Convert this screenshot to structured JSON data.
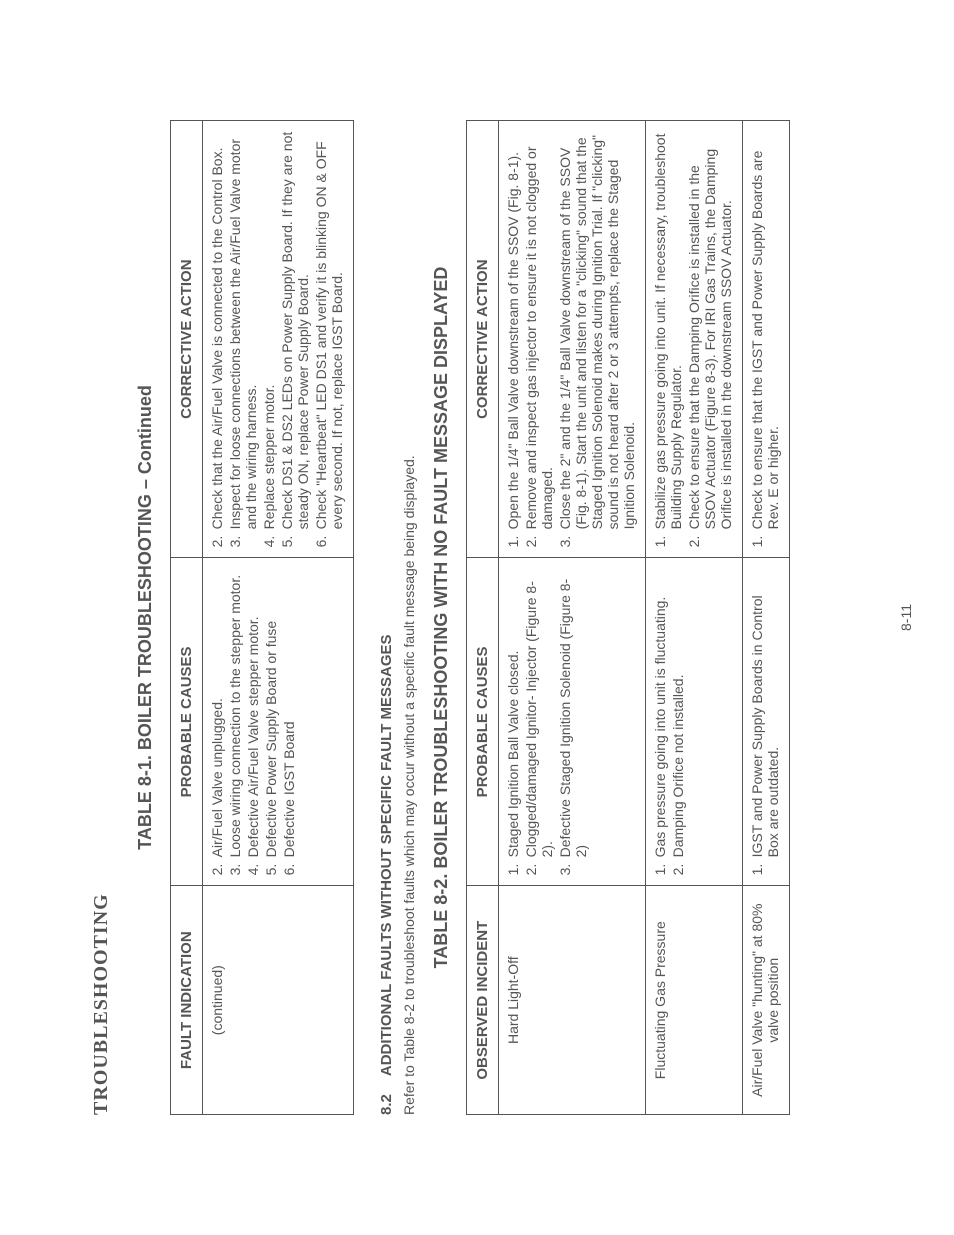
{
  "header": "TROUBLESHOOTING",
  "table1": {
    "title": "TABLE 8-1.   BOILER TROUBLESHOOTING – Continued",
    "col_a": "FAULT INDICATION",
    "col_b": "PROBABLE CAUSES",
    "col_c": "CORRECTIVE ACTION",
    "row": {
      "fault": "(continued)",
      "causes": [
        {
          "n": "2.",
          "t": "Air/Fuel Valve unplugged."
        },
        {
          "n": "3.",
          "t": "Loose wiring connection to the stepper motor."
        },
        {
          "n": "4.",
          "t": "Defective Air/Fuel Valve stepper motor."
        },
        {
          "n": "5.",
          "t": "Defective Power Supply Board or fuse"
        },
        {
          "n": "6.",
          "t": "Defective IGST Board"
        }
      ],
      "actions": [
        {
          "n": "2.",
          "t": "Check that the Air/Fuel Valve is connected to the Control Box."
        },
        {
          "n": "3.",
          "t": "Inspect for loose connections between the Air/Fuel Valve motor and the wiring harness."
        },
        {
          "n": "4.",
          "t": "Replace stepper motor."
        },
        {
          "n": "5.",
          "t": "Check DS1 & DS2 LEDs on Power Supply Board. If they are not steady ON, replace Power Supply Board."
        },
        {
          "n": "6.",
          "t": "Check \"Heartbeat\" LED DS1 and verify it is blinking ON & OFF every second. If not, replace IGST Board."
        }
      ]
    }
  },
  "subsection": {
    "num": "8.2",
    "title": "ADDITIONAL FAULTS WITHOUT SPECIFIC FAULT MESSAGES",
    "body": "Refer to Table 8-2 to troubleshoot faults which may occur without a specific fault message being displayed."
  },
  "table2": {
    "title": "TABLE 8-2.   BOILER TROUBLESHOOTING WITH NO FAULT MESSAGE DISPLAYED",
    "col_a": "OBSERVED INCIDENT",
    "col_b": "PROBABLE CAUSES",
    "col_c": "CORRECTIVE ACTION",
    "rows": [
      {
        "incident": "Hard Light-Off",
        "causes": [
          {
            "n": "1.",
            "t": "Staged Ignition Ball Valve closed."
          },
          {
            "n": "2.",
            "t": "Clogged/damaged Ignitor- Injector (Figure 8-2)."
          },
          {
            "n": "3.",
            "t": "Defective Staged Ignition Solenoid (Figure 8-2)"
          }
        ],
        "actions": [
          {
            "n": "1.",
            "t": "Open the 1/4\" Ball Valve downstream of the SSOV (Fig. 8-1)."
          },
          {
            "n": "2.",
            "t": "Remove and inspect gas injector to ensure it is not clogged or damaged."
          },
          {
            "n": "3.",
            "t": "Close the 2\" and the 1/4\" Ball Valve downstream of the SSOV (Fig. 8-1). Start the unit and listen for a \"clicking\" sound that the Staged Ignition Solenoid makes during Ignition Trial. If \"clicking\" sound is not heard after 2 or 3 attempts, replace the Staged Ignition Solenoid."
          }
        ]
      },
      {
        "incident": "Fluctuating Gas Pressure",
        "causes": [
          {
            "n": "1.",
            "t": "Gas pressure going into unit is fluctuating."
          },
          {
            "n": "2.",
            "t": "Damping Orifice not installed."
          }
        ],
        "actions": [
          {
            "n": "1.",
            "t": "Stabilize gas pressure going into unit. If necessary, troubleshoot Building Supply Regulator."
          },
          {
            "n": "2.",
            "t": "Check to ensure that the Damping Orifice is installed in the SSOV Actuator (Figure 8-3). For IRI Gas Trains, the Damping Orifice is installed in the downstream SSOV Actuator."
          }
        ]
      },
      {
        "incident": "Air/Fuel Valve \"hunting\" at 80% valve position",
        "causes": [
          {
            "n": "1.",
            "t": "IGST and Power Supply Boards in Control Box are outdated."
          }
        ],
        "actions": [
          {
            "n": "1.",
            "t": "Check to ensure that the IGST and Power Supply Boards are Rev. E or higher."
          }
        ]
      }
    ]
  },
  "page_num": "8-11"
}
